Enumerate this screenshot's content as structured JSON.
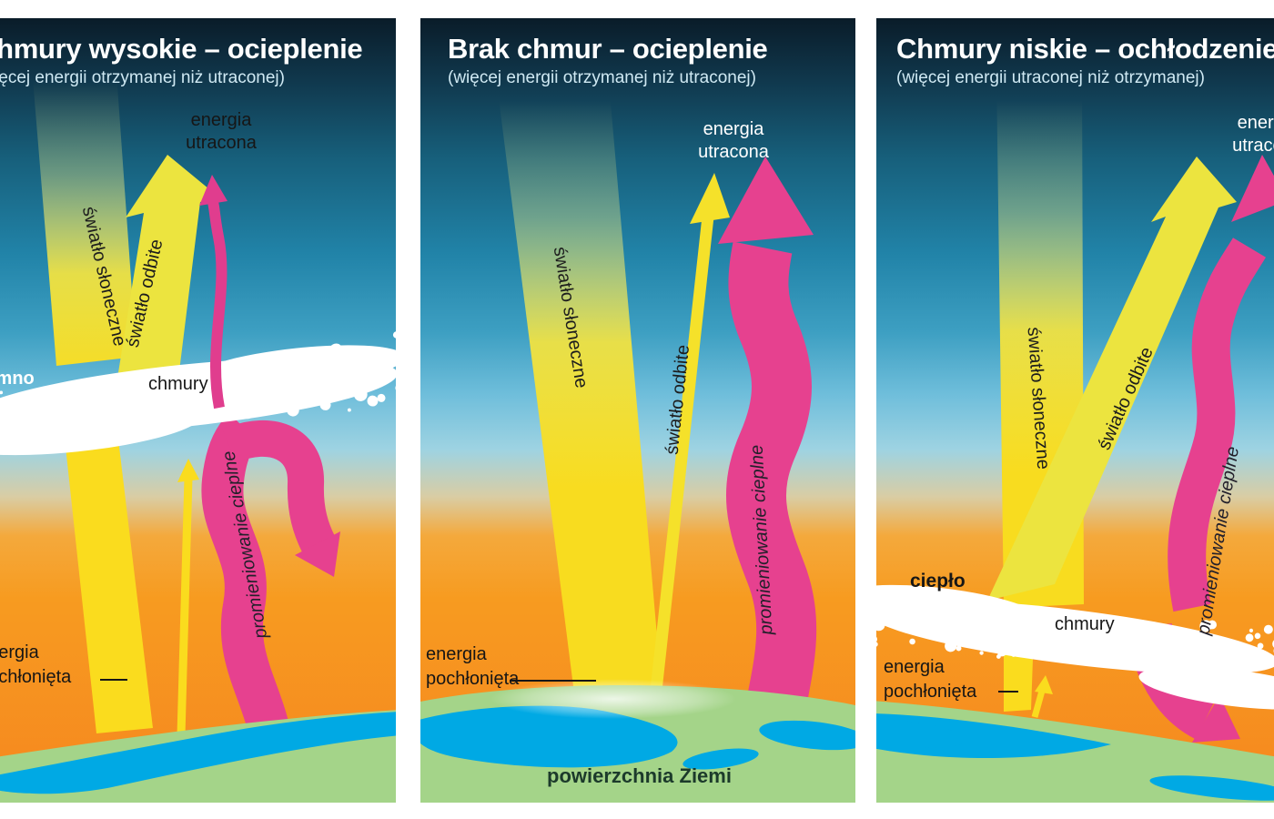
{
  "panels": [
    {
      "title": "Chmury wysokie – ocieplenie",
      "subtitle": "(więcej energii otrzymanej niż utraconej)",
      "labels": {
        "energy_lost": "energia utracona",
        "sunlight": "światło słoneczne",
        "reflected_light": "światło odbite",
        "thermal_radiation": "promieniowanie cieplne",
        "clouds": "chmury",
        "cold": "zimno",
        "energy_absorbed": "energia pochłonięta"
      }
    },
    {
      "title": "Brak chmur – ocieplenie",
      "subtitle": "(więcej energii otrzymanej niż utraconej)",
      "labels": {
        "energy_lost": "energia utracona",
        "sunlight": "światło słoneczne",
        "reflected_light": "światło odbite",
        "thermal_radiation": "promieniowanie cieplne",
        "energy_absorbed": "energia pochłonięta",
        "earth_surface": "powierzchnia Ziemi"
      }
    },
    {
      "title": "Chmury niskie – ochłodzenie",
      "subtitle": "(więcej energii utraconej niż otrzymanej)",
      "labels": {
        "energy_lost": "energia utracona",
        "sunlight": "światło słoneczne",
        "reflected_light": "światło odbite",
        "thermal_radiation": "promieniowanie cieplne",
        "clouds": "chmury",
        "warm": "ciepło",
        "energy_absorbed": "energia pochłonięta"
      }
    }
  ],
  "colors": {
    "sky_top": "#0a1c29",
    "sky_mid": "#2183a8",
    "sky_light": "#8ccfe2",
    "ground_orange": "#f6921e",
    "sun_yellow": "#fadc1e",
    "reflected_yellow": "#ece43f",
    "heat_pink": "#e6418f",
    "land_green": "#a4d489",
    "sea_blue": "#00a9e4",
    "cloud_white": "#ffffff"
  }
}
